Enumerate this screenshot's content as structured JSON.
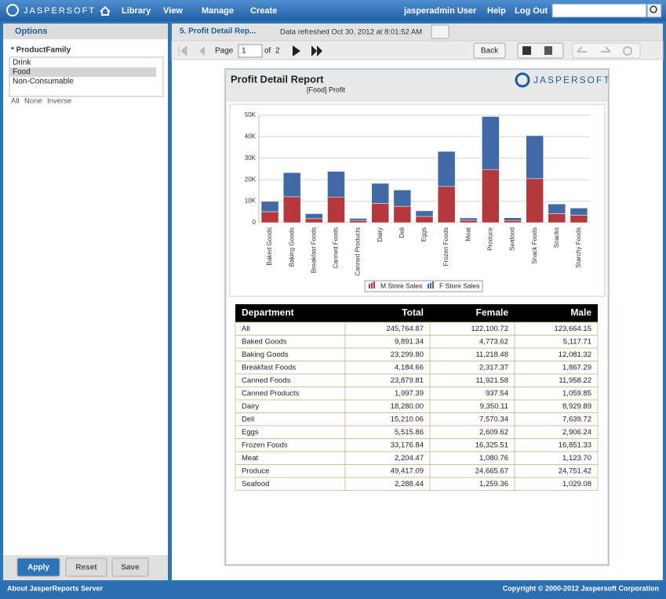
{
  "header": {
    "logo": "JASPERSOFT",
    "nav": [
      "Library",
      "View",
      "Manage",
      "Create"
    ],
    "user": "jasperadmin User",
    "help": "Help",
    "logout": "Log Out"
  },
  "options": {
    "title": "Options",
    "param": "* ProductFamily",
    "items": [
      "Drink",
      "Food",
      "Non-Consumable"
    ],
    "selected": 1,
    "links": [
      "All",
      "None",
      "Inverse"
    ],
    "buttons": [
      "Apply",
      "Reset",
      "Save"
    ]
  },
  "viewer": {
    "tab": "5. Profit Detail Rep...",
    "refreshed": "Data refreshed Oct 30, 2012 at 8:01:52 AM",
    "page_label": "Page",
    "page": "1",
    "of": "of",
    "pages": "2",
    "back": "Back"
  },
  "report": {
    "title": "Profit Detail Report",
    "subtitle": "[Food] Profit",
    "logo": "JASPERSOFT"
  },
  "chart_data": {
    "type": "stacked_bar",
    "categories": [
      "Baked Goods",
      "Baking Goods",
      "Breakfast Foods",
      "Canned Foods",
      "Canned Products",
      "Dairy",
      "Deli",
      "Eggs",
      "Frozen Foods",
      "Meat",
      "Produce",
      "Seafood",
      "Snack Foods",
      "Snacks",
      "Starchy Foods"
    ],
    "series": [
      {
        "name": "M Store Sales",
        "color": "#b5393c",
        "values": [
          5117.71,
          12081.32,
          1867.29,
          11958.22,
          1059.85,
          8929.89,
          7639.72,
          2906.24,
          16851.33,
          1123.7,
          24751.42,
          1029.08,
          20500,
          4200,
          3500
        ]
      },
      {
        "name": "F Store Sales",
        "color": "#3f6aa6",
        "values": [
          4773.62,
          11218.48,
          2317.37,
          11921.58,
          937.54,
          9350.11,
          7570.34,
          2609.62,
          16325.51,
          1080.76,
          24665.67,
          1259.36,
          20000,
          4500,
          3300
        ]
      }
    ],
    "ylim": [
      0,
      50000
    ],
    "yticks": [
      0,
      {
        "value": 10000,
        "label": "10K"
      },
      {
        "value": 20000,
        "label": "20K"
      },
      {
        "value": 30000,
        "label": "30K"
      },
      {
        "value": 40000,
        "label": "40K"
      },
      {
        "value": 50000,
        "label": "50K"
      }
    ],
    "grid": true
  },
  "table": {
    "columns": [
      "Department",
      "Total",
      "Female",
      "Male"
    ],
    "rows": [
      [
        "All",
        "245,764.87",
        "122,100.72",
        "123,664.15"
      ],
      [
        "Baked Goods",
        "9,891.34",
        "4,773.62",
        "5,117.71"
      ],
      [
        "Baking Goods",
        "23,299.80",
        "11,218.48",
        "12,081.32"
      ],
      [
        "Breakfast Foods",
        "4,184.66",
        "2,317.37",
        "1,867.29"
      ],
      [
        "Canned Foods",
        "23,879.81",
        "11,921.58",
        "11,958.22"
      ],
      [
        "Canned Products",
        "1,997.39",
        "937.54",
        "1,059.85"
      ],
      [
        "Dairy",
        "18,280.00",
        "9,350.11",
        "8,929.89"
      ],
      [
        "Deli",
        "15,210.06",
        "7,570.34",
        "7,639.72"
      ],
      [
        "Eggs",
        "5,515.86",
        "2,609.62",
        "2,906.24"
      ],
      [
        "Frozen Foods",
        "33,176.84",
        "16,325.51",
        "16,851.33"
      ],
      [
        "Meat",
        "2,204.47",
        "1,080.76",
        "1,123.70"
      ],
      [
        "Produce",
        "49,417.09",
        "24,665.67",
        "24,751.42"
      ],
      [
        "Seafood",
        "2,288.44",
        "1,259.36",
        "1,029.08"
      ]
    ]
  },
  "footer": {
    "left": "About JasperReports Server",
    "right": "Copyright © 2000-2012 Jaspersoft Corporation"
  }
}
